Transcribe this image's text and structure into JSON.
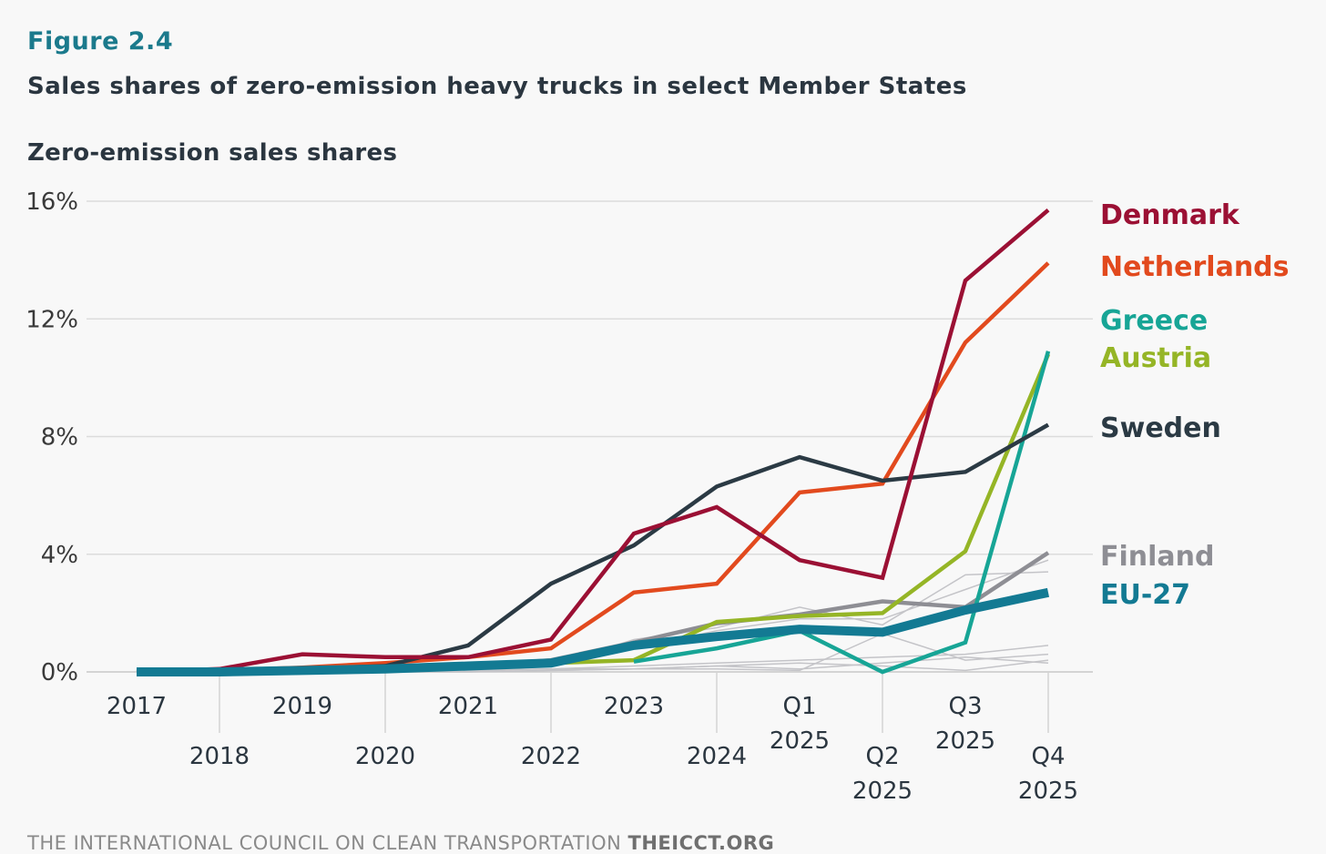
{
  "figure_label": "Figure 2.4",
  "footer": {
    "org": "THE INTERNATIONAL COUNCIL ON CLEAN TRANSPORTATION",
    "site": "THEICCT.ORG"
  },
  "chart_data": {
    "type": "line",
    "title": "Sales shares of zero-emission heavy trucks in select Member States",
    "ylabel": "Zero-emission sales shares",
    "xlabel": "",
    "ylim": [
      0,
      16
    ],
    "yticks": [
      0,
      4,
      8,
      12,
      16
    ],
    "ytick_labels": [
      "0%",
      "4%",
      "8%",
      "12%",
      "16%"
    ],
    "grid": true,
    "legend": "right (direct labels at line ends)",
    "x": [
      "2017",
      "2018",
      "2019",
      "2020",
      "2021",
      "2022",
      "2023",
      "2024",
      "Q1 2025",
      "Q2 2025",
      "Q3 2025",
      "Q4 2025"
    ],
    "x_label_lines": [
      [
        "2017"
      ],
      [
        "2018"
      ],
      [
        "2019"
      ],
      [
        "2020"
      ],
      [
        "2021"
      ],
      [
        "2022"
      ],
      [
        "2023"
      ],
      [
        "2024"
      ],
      [
        "Q1",
        "2025"
      ],
      [
        "Q2",
        "2025"
      ],
      [
        "Q3",
        "2025"
      ],
      [
        "Q4",
        "2025"
      ]
    ],
    "series": [
      {
        "name": "Denmark",
        "color": "#9b1034",
        "width": 4.5,
        "values": [
          0,
          0.1,
          0.6,
          0.5,
          0.5,
          1.1,
          4.7,
          5.6,
          3.8,
          3.2,
          13.3,
          15.7
        ]
      },
      {
        "name": "Netherlands",
        "color": "#e24a1e",
        "width": 4.5,
        "values": [
          0,
          0.05,
          0.15,
          0.3,
          0.5,
          0.8,
          2.7,
          3.0,
          6.1,
          6.4,
          11.2,
          13.9
        ]
      },
      {
        "name": "Greece",
        "color": "#17a596",
        "width": 4.5,
        "values": [
          null,
          null,
          null,
          null,
          null,
          null,
          0.35,
          0.8,
          1.4,
          0.0,
          1.0,
          10.9
        ]
      },
      {
        "name": "Austria",
        "color": "#95b526",
        "width": 4.5,
        "values": [
          0,
          0.05,
          0.1,
          0.1,
          0.15,
          0.3,
          0.4,
          1.7,
          1.9,
          2.0,
          4.1,
          10.8
        ]
      },
      {
        "name": "Sweden",
        "color": "#2b3a44",
        "width": 4.5,
        "values": [
          0,
          0.05,
          0.1,
          0.2,
          0.9,
          3.0,
          4.3,
          6.3,
          7.3,
          6.5,
          6.8,
          8.4
        ]
      },
      {
        "name": "Finland",
        "color": "#8e8e94",
        "width": 4.5,
        "values": [
          0,
          0,
          0.05,
          0.1,
          0.2,
          0.4,
          1.0,
          1.65,
          1.95,
          2.4,
          2.2,
          4.05
        ]
      },
      {
        "name": "EU-27",
        "color": "#137a93",
        "width": 10,
        "values": [
          0,
          0,
          0.05,
          0.1,
          0.2,
          0.3,
          0.9,
          1.2,
          1.45,
          1.35,
          2.1,
          2.7
        ]
      }
    ],
    "other_series_color": "#c4c4c8",
    "other_series": [
      [
        0,
        0,
        0,
        0.05,
        0.1,
        0.2,
        1.1,
        1.5,
        2.2,
        1.6,
        3.3,
        3.4
      ],
      [
        0,
        0,
        0,
        0.05,
        0.1,
        0.2,
        0.8,
        1.4,
        1.8,
        1.8,
        2.8,
        3.8
      ],
      [
        0,
        0,
        0,
        0,
        0.05,
        0.1,
        0.2,
        0.3,
        0.4,
        0.5,
        0.6,
        0.9
      ],
      [
        0,
        0,
        0,
        0,
        0.05,
        0.1,
        0.1,
        0.1,
        0.05,
        1.3,
        0.4,
        0.6
      ],
      [
        0,
        0,
        0,
        0,
        0,
        0.05,
        0.1,
        0.2,
        0.3,
        0.2,
        0.05,
        0.4
      ],
      [
        0,
        0,
        0,
        0,
        0,
        0.05,
        0.1,
        0.2,
        0.1,
        0.3,
        0.5,
        0.3
      ]
    ]
  }
}
